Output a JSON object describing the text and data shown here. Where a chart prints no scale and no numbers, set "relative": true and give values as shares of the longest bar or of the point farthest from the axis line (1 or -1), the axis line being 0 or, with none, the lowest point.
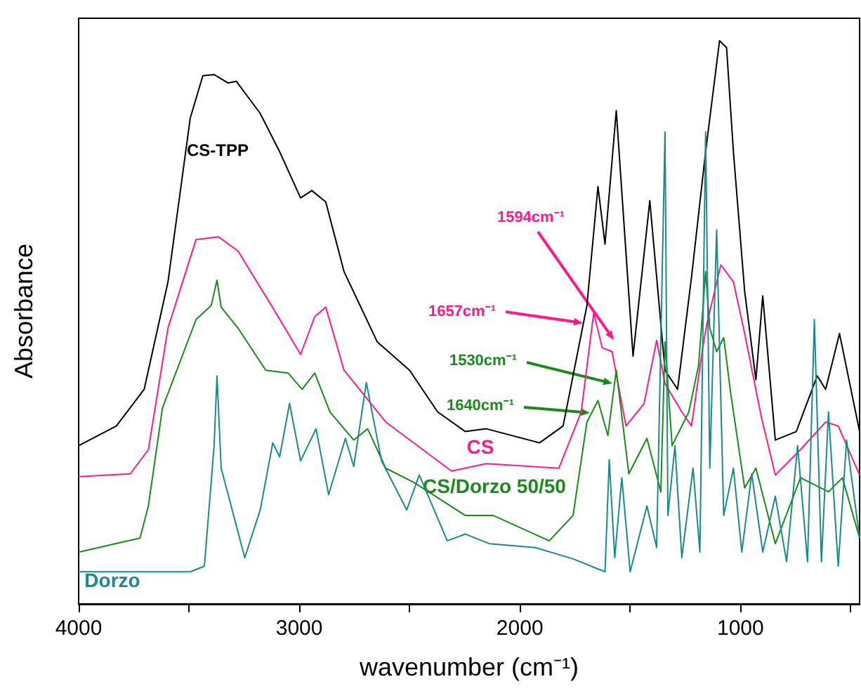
{
  "chart_data": {
    "type": "line",
    "relative": true,
    "xlabel": "wavenumber (cm⁻¹)",
    "ylabel": "Absorbance",
    "xlim": [
      4000,
      460
    ],
    "xticks": [
      4000,
      {
        "value": 3500,
        "label": null
      },
      3000,
      {
        "value": 2500,
        "label": null
      },
      2000,
      {
        "value": 1500,
        "label": null
      },
      1000,
      {
        "value": 500,
        "label": null
      }
    ],
    "grid": false,
    "legend": false,
    "marker": "none",
    "line_style": "solid",
    "annotations": [
      "1594cm⁻¹",
      "1657cm⁻¹",
      "1530cm⁻¹",
      "1640cm⁻¹"
    ],
    "series": [
      {
        "name": "CS-TPP",
        "color": "#000000",
        "x": [
          4000,
          3829,
          3703,
          3595,
          3494,
          3437,
          3386,
          3323,
          3285,
          3177,
          3089,
          2994,
          2943,
          2880,
          2797,
          2646,
          2500,
          2373,
          2247,
          2152,
          1911,
          1804,
          1696,
          1646,
          1614,
          1563,
          1487,
          1411,
          1342,
          1285,
          1222,
          1158,
          1095,
          1063,
          1032,
          981,
          930,
          899,
          842,
          747,
          652,
          614,
          551,
          460
        ],
        "values": [
          0.281,
          0.316,
          0.381,
          0.572,
          0.863,
          0.938,
          0.94,
          0.925,
          0.928,
          0.871,
          0.803,
          0.721,
          0.734,
          0.714,
          0.59,
          0.465,
          0.415,
          0.341,
          0.306,
          0.311,
          0.286,
          0.316,
          0.53,
          0.741,
          0.639,
          0.876,
          0.44,
          0.716,
          0.415,
          0.381,
          0.58,
          0.803,
          1.0,
          0.988,
          0.803,
          0.555,
          0.398,
          0.547,
          0.291,
          0.306,
          0.405,
          0.381,
          0.48,
          0.306
        ]
      },
      {
        "name": "CS",
        "color": "#ff1a8c",
        "x": [
          4000,
          3766,
          3684,
          3595,
          3468,
          3367,
          3278,
          3114,
          2994,
          2930,
          2880,
          2797,
          2608,
          2310,
          2152,
          1823,
          1722,
          1665,
          1627,
          1582,
          1519,
          1437,
          1380,
          1342,
          1266,
          1222,
          1171,
          1152,
          1089,
          1032,
          981,
          905,
          842,
          728,
          614,
          557,
          460
        ],
        "values": [
          0.226,
          0.231,
          0.274,
          0.49,
          0.647,
          0.652,
          0.627,
          0.522,
          0.443,
          0.51,
          0.527,
          0.415,
          0.323,
          0.236,
          0.249,
          0.241,
          0.341,
          0.517,
          0.455,
          0.448,
          0.316,
          0.356,
          0.468,
          0.391,
          0.341,
          0.316,
          0.455,
          0.498,
          0.602,
          0.572,
          0.48,
          0.331,
          0.229,
          0.274,
          0.323,
          0.316,
          0.229
        ]
      },
      {
        "name": "CS/Dorzo 50/50",
        "color": "#1a8a1a",
        "x": [
          4000,
          3722,
          3684,
          3620,
          3468,
          3399,
          3373,
          3354,
          3278,
          3152,
          3051,
          2987,
          2930,
          2861,
          2753,
          2690,
          2608,
          2481,
          2247,
          2120,
          1867,
          1759,
          1696,
          1646,
          1601,
          1563,
          1506,
          1424,
          1361,
          1342,
          1310,
          1234,
          1190,
          1158,
          1139,
          1108,
          1076,
          1044,
          981,
          930,
          842,
          728,
          601,
          538,
          460
        ],
        "values": [
          0.092,
          0.117,
          0.174,
          0.348,
          0.505,
          0.53,
          0.575,
          0.527,
          0.49,
          0.415,
          0.41,
          0.381,
          0.41,
          0.341,
          0.291,
          0.311,
          0.241,
          0.216,
          0.157,
          0.157,
          0.112,
          0.157,
          0.323,
          0.361,
          0.299,
          0.415,
          0.231,
          0.294,
          0.199,
          0.465,
          0.281,
          0.341,
          0.423,
          0.59,
          0.49,
          0.448,
          0.473,
          0.373,
          0.206,
          0.241,
          0.107,
          0.224,
          0.199,
          0.224,
          0.117
        ]
      },
      {
        "name": "Dorzo",
        "color": "#1a8a8a",
        "x": [
          4000,
          3494,
          3430,
          3386,
          3373,
          3354,
          3247,
          3177,
          3120,
          3089,
          3044,
          2994,
          2924,
          2867,
          2791,
          2753,
          2696,
          2627,
          2513,
          2456,
          2329,
          2247,
          2139,
          1930,
          1759,
          1614,
          1595,
          1570,
          1538,
          1500,
          1424,
          1380,
          1342,
          1329,
          1297,
          1266,
          1215,
          1184,
          1158,
          1139,
          1108,
          1076,
          1032,
          994,
          949,
          899,
          842,
          791,
          741,
          696,
          665,
          633,
          601,
          557,
          519,
          460
        ],
        "values": [
          0.057,
          0.057,
          0.067,
          0.281,
          0.405,
          0.241,
          0.082,
          0.167,
          0.286,
          0.261,
          0.356,
          0.254,
          0.311,
          0.194,
          0.294,
          0.244,
          0.393,
          0.254,
          0.167,
          0.229,
          0.112,
          0.124,
          0.107,
          0.1,
          0.08,
          0.057,
          0.256,
          0.082,
          0.224,
          0.057,
          0.174,
          0.1,
          0.838,
          0.157,
          0.281,
          0.082,
          0.241,
          0.092,
          0.838,
          0.241,
          0.664,
          0.157,
          0.241,
          0.092,
          0.231,
          0.092,
          0.191,
          0.075,
          0.281,
          0.075,
          0.505,
          0.075,
          0.341,
          0.067,
          0.291,
          0.117
        ]
      }
    ]
  }
}
